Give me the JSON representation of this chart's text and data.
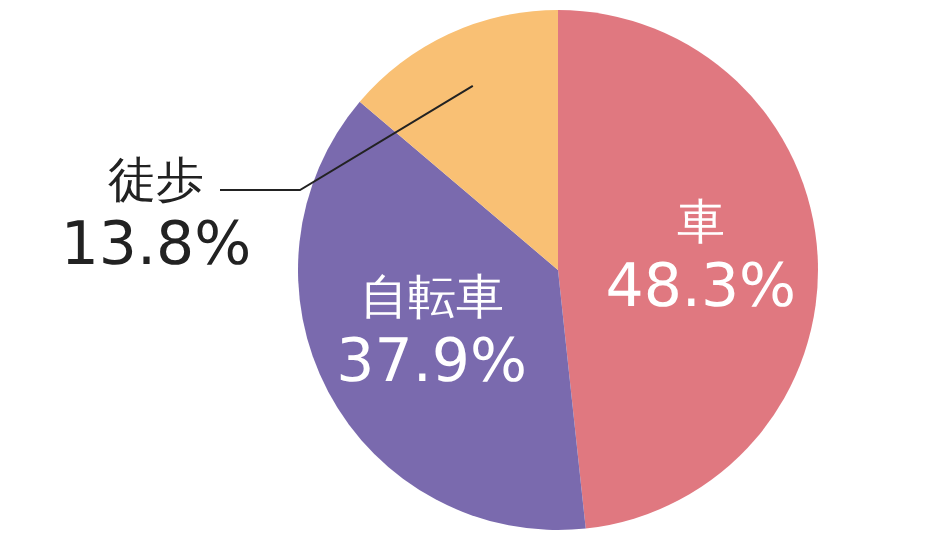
{
  "chart_data": {
    "type": "pie",
    "categories": [
      "車",
      "自転車",
      "徒歩"
    ],
    "values": [
      48.3,
      37.9,
      13.8
    ],
    "colors": [
      "#e07880",
      "#7a6aae",
      "#f9c074"
    ],
    "value_labels": [
      "48.3%",
      "37.9%",
      "13.8%"
    ]
  }
}
